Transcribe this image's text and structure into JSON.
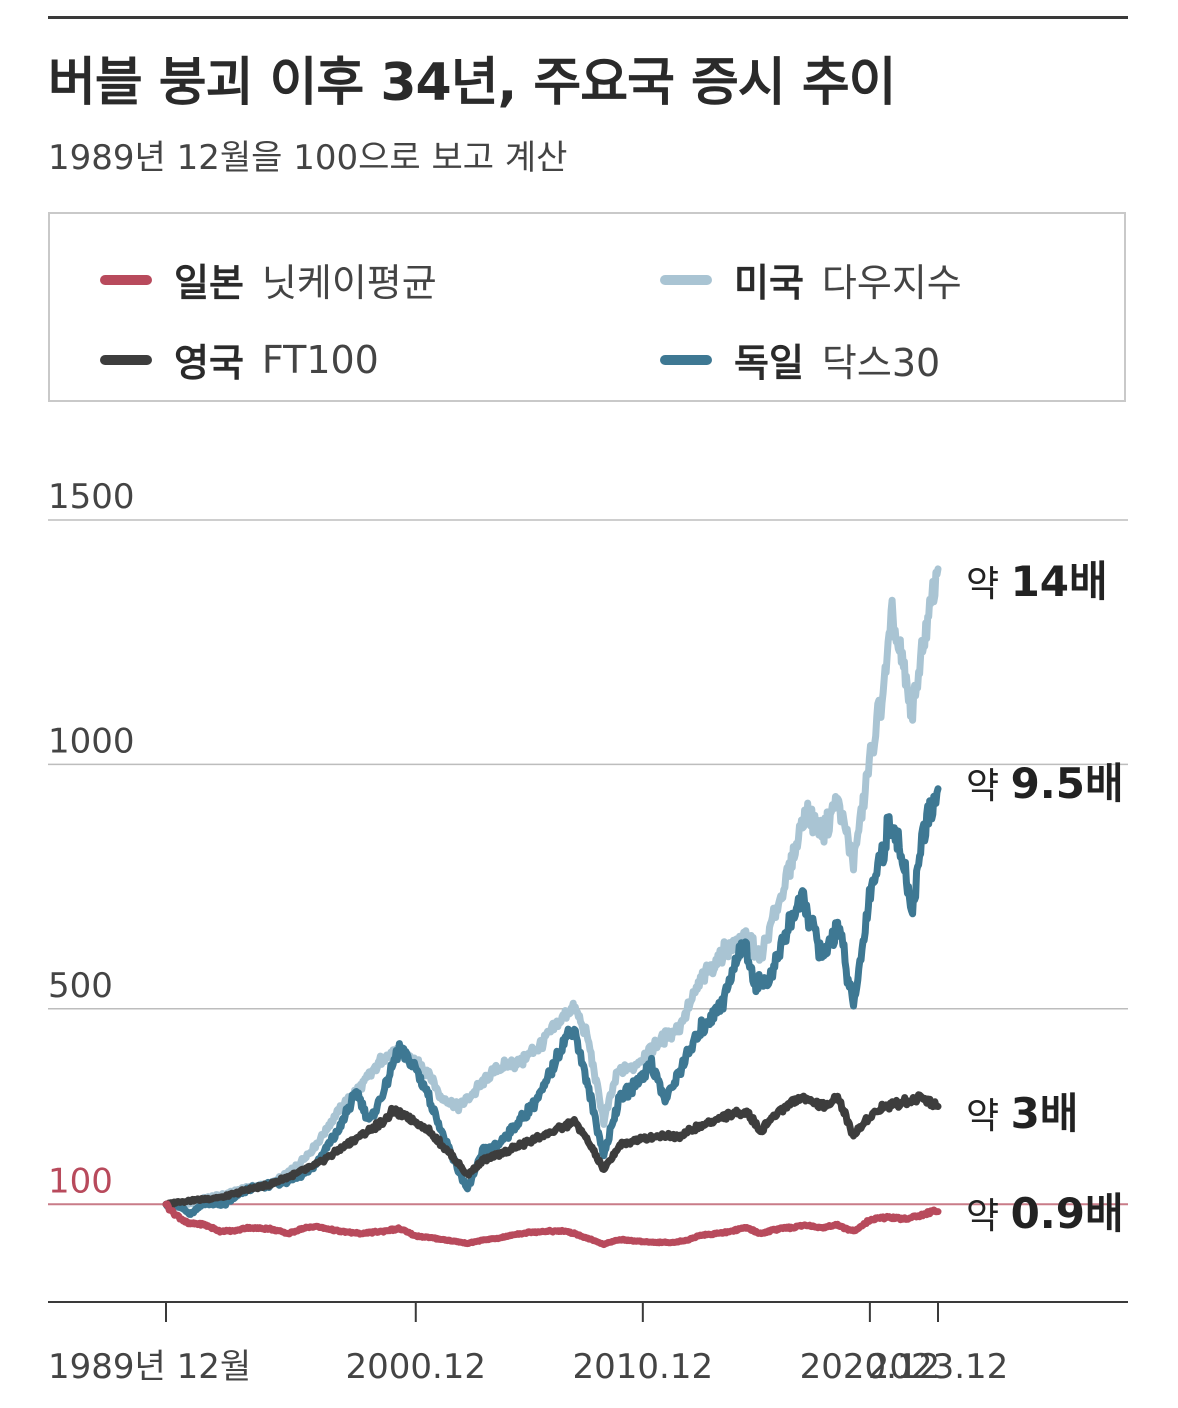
{
  "header": {
    "title": "버블 붕괴 이후 34년, 주요국 증시 추이",
    "subtitle": "1989년 12월을 100으로 보고 계산"
  },
  "colors": {
    "japan": "#b84a5c",
    "usa": "#a9c4d3",
    "uk": "#3d3d3d",
    "germany": "#3e7893",
    "grid": "#bdbdbd",
    "baseline": "#c97c88",
    "baseline_label": "#b84a5c"
  },
  "chart_data": {
    "type": "line",
    "title": "버블 붕괴 이후 34년, 주요국 증시 추이",
    "subtitle": "1989년 12월을 100으로 보고 계산",
    "xlabel": "",
    "ylabel": "",
    "xlim": [
      1989.92,
      2023.92
    ],
    "ylim": [
      -100,
      1500
    ],
    "y_ticks": [
      {
        "value": 500,
        "label": "500"
      },
      {
        "value": 1000,
        "label": "1000"
      },
      {
        "value": 1500,
        "label": "1500"
      }
    ],
    "baseline": {
      "value": 100,
      "label": "100"
    },
    "x_ticks": [
      {
        "value": 1989.92,
        "label": "1989년 12월"
      },
      {
        "value": 2000.92,
        "label": "2000.12"
      },
      {
        "value": 2010.92,
        "label": "2010.12"
      },
      {
        "value": 2020.92,
        "label": "2020.12"
      },
      {
        "value": 2023.92,
        "label": "2023.12"
      }
    ],
    "legend_position": "top",
    "series": [
      {
        "key": "usa",
        "name": "미국",
        "index": "다우지수",
        "end_label": {
          "prefix": "약 ",
          "value": "14배"
        },
        "points": [
          [
            1989.92,
            100
          ],
          [
            1990.5,
            95
          ],
          [
            1991.5,
            110
          ],
          [
            1992.5,
            120
          ],
          [
            1993.5,
            135
          ],
          [
            1994.5,
            140
          ],
          [
            1995.5,
            170
          ],
          [
            1996.5,
            220
          ],
          [
            1997.5,
            290
          ],
          [
            1998.5,
            340
          ],
          [
            1999.5,
            400
          ],
          [
            2000.2,
            410
          ],
          [
            2000.9,
            390
          ],
          [
            2001.5,
            370
          ],
          [
            2002.0,
            320
          ],
          [
            2002.8,
            300
          ],
          [
            2003.5,
            330
          ],
          [
            2004.5,
            380
          ],
          [
            2005.5,
            390
          ],
          [
            2006.5,
            430
          ],
          [
            2007.5,
            490
          ],
          [
            2007.9,
            500
          ],
          [
            2008.5,
            440
          ],
          [
            2009.2,
            270
          ],
          [
            2009.8,
            370
          ],
          [
            2010.5,
            380
          ],
          [
            2011.5,
            430
          ],
          [
            2012.5,
            460
          ],
          [
            2013.5,
            560
          ],
          [
            2014.5,
            620
          ],
          [
            2015.5,
            650
          ],
          [
            2016.1,
            600
          ],
          [
            2016.9,
            720
          ],
          [
            2017.5,
            800
          ],
          [
            2018.0,
            900
          ],
          [
            2018.9,
            860
          ],
          [
            2019.5,
            930
          ],
          [
            2020.2,
            800
          ],
          [
            2020.9,
            1000
          ],
          [
            2021.5,
            1150
          ],
          [
            2021.9,
            1300
          ],
          [
            2022.8,
            1100
          ],
          [
            2023.2,
            1230
          ],
          [
            2023.6,
            1320
          ],
          [
            2023.92,
            1400
          ]
        ]
      },
      {
        "key": "germany",
        "name": "독일",
        "index": "닥스30",
        "end_label": {
          "prefix": "약 ",
          "value": "9.5배"
        },
        "points": [
          [
            1989.92,
            100
          ],
          [
            1990.5,
            95
          ],
          [
            1991.0,
            80
          ],
          [
            1991.5,
            100
          ],
          [
            1992.5,
            100
          ],
          [
            1993.5,
            130
          ],
          [
            1994.5,
            140
          ],
          [
            1995.5,
            150
          ],
          [
            1996.5,
            180
          ],
          [
            1997.5,
            250
          ],
          [
            1998.3,
            330
          ],
          [
            1998.9,
            270
          ],
          [
            1999.5,
            330
          ],
          [
            2000.2,
            420
          ],
          [
            2000.9,
            380
          ],
          [
            2001.5,
            320
          ],
          [
            2002.2,
            230
          ],
          [
            2003.2,
            130
          ],
          [
            2003.9,
            210
          ],
          [
            2004.5,
            220
          ],
          [
            2005.5,
            270
          ],
          [
            2006.5,
            330
          ],
          [
            2007.5,
            440
          ],
          [
            2007.9,
            460
          ],
          [
            2008.5,
            340
          ],
          [
            2009.2,
            200
          ],
          [
            2009.9,
            320
          ],
          [
            2010.5,
            340
          ],
          [
            2011.3,
            390
          ],
          [
            2011.9,
            310
          ],
          [
            2012.5,
            370
          ],
          [
            2013.5,
            460
          ],
          [
            2014.5,
            520
          ],
          [
            2015.3,
            640
          ],
          [
            2015.9,
            550
          ],
          [
            2016.5,
            560
          ],
          [
            2017.5,
            690
          ],
          [
            2018.0,
            720
          ],
          [
            2018.9,
            600
          ],
          [
            2019.5,
            680
          ],
          [
            2020.2,
            500
          ],
          [
            2020.9,
            730
          ],
          [
            2021.5,
            830
          ],
          [
            2021.9,
            890
          ],
          [
            2022.8,
            700
          ],
          [
            2023.2,
            850
          ],
          [
            2023.6,
            900
          ],
          [
            2023.92,
            950
          ]
        ]
      },
      {
        "key": "uk",
        "name": "영국",
        "index": "FT100",
        "end_label": {
          "prefix": "약 ",
          "value": "3배"
        },
        "points": [
          [
            1989.92,
            100
          ],
          [
            1990.5,
            105
          ],
          [
            1991.5,
            110
          ],
          [
            1992.5,
            115
          ],
          [
            1993.5,
            130
          ],
          [
            1994.5,
            140
          ],
          [
            1995.5,
            160
          ],
          [
            1996.5,
            180
          ],
          [
            1997.5,
            210
          ],
          [
            1998.5,
            240
          ],
          [
            1999.5,
            270
          ],
          [
            1999.9,
            290
          ],
          [
            2000.5,
            280
          ],
          [
            2000.9,
            270
          ],
          [
            2001.5,
            250
          ],
          [
            2002.5,
            200
          ],
          [
            2003.2,
            160
          ],
          [
            2003.9,
            190
          ],
          [
            2004.5,
            200
          ],
          [
            2005.5,
            220
          ],
          [
            2006.5,
            240
          ],
          [
            2007.5,
            260
          ],
          [
            2007.9,
            270
          ],
          [
            2008.5,
            230
          ],
          [
            2009.2,
            170
          ],
          [
            2009.9,
            220
          ],
          [
            2010.5,
            230
          ],
          [
            2011.5,
            240
          ],
          [
            2012.5,
            240
          ],
          [
            2013.5,
            260
          ],
          [
            2014.5,
            280
          ],
          [
            2015.5,
            290
          ],
          [
            2016.1,
            250
          ],
          [
            2016.9,
            290
          ],
          [
            2017.5,
            310
          ],
          [
            2018.0,
            320
          ],
          [
            2018.9,
            300
          ],
          [
            2019.5,
            320
          ],
          [
            2020.2,
            240
          ],
          [
            2020.9,
            280
          ],
          [
            2021.5,
            300
          ],
          [
            2022.5,
            310
          ],
          [
            2023.2,
            320
          ],
          [
            2023.92,
            300
          ]
        ]
      },
      {
        "key": "japan",
        "name": "일본",
        "index": "닛케이평균",
        "end_label": {
          "prefix": "약 ",
          "value": "0.9배"
        },
        "points": [
          [
            1989.92,
            100
          ],
          [
            1990.3,
            80
          ],
          [
            1990.9,
            60
          ],
          [
            1991.5,
            60
          ],
          [
            1992.3,
            45
          ],
          [
            1992.9,
            45
          ],
          [
            1993.5,
            52
          ],
          [
            1994.5,
            50
          ],
          [
            1995.3,
            40
          ],
          [
            1995.9,
            50
          ],
          [
            1996.5,
            55
          ],
          [
            1997.5,
            45
          ],
          [
            1998.5,
            40
          ],
          [
            1999.5,
            45
          ],
          [
            2000.2,
            50
          ],
          [
            2000.9,
            35
          ],
          [
            2001.5,
            32
          ],
          [
            2002.5,
            25
          ],
          [
            2003.2,
            20
          ],
          [
            2003.9,
            27
          ],
          [
            2004.5,
            30
          ],
          [
            2005.5,
            40
          ],
          [
            2006.5,
            45
          ],
          [
            2007.5,
            45
          ],
          [
            2007.9,
            40
          ],
          [
            2008.5,
            30
          ],
          [
            2009.2,
            18
          ],
          [
            2009.9,
            28
          ],
          [
            2010.5,
            25
          ],
          [
            2011.5,
            22
          ],
          [
            2012.3,
            22
          ],
          [
            2012.9,
            27
          ],
          [
            2013.5,
            37
          ],
          [
            2014.5,
            42
          ],
          [
            2015.5,
            52
          ],
          [
            2016.1,
            40
          ],
          [
            2016.9,
            50
          ],
          [
            2017.5,
            52
          ],
          [
            2018.0,
            57
          ],
          [
            2018.9,
            52
          ],
          [
            2019.5,
            57
          ],
          [
            2020.2,
            45
          ],
          [
            2020.9,
            67
          ],
          [
            2021.5,
            73
          ],
          [
            2021.9,
            73
          ],
          [
            2022.5,
            70
          ],
          [
            2023.2,
            78
          ],
          [
            2023.6,
            85
          ],
          [
            2023.92,
            85
          ]
        ]
      }
    ]
  }
}
